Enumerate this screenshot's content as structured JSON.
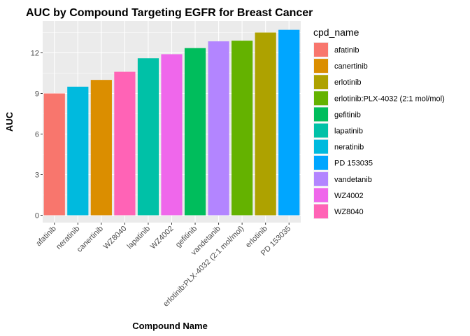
{
  "chart_data": {
    "type": "bar",
    "title": "AUC by Compound Targeting EGFR for Breast Cancer",
    "xlabel": "Compound Name",
    "ylabel": "AUC",
    "ylim": [
      0,
      14
    ],
    "yticks": [
      0,
      3,
      6,
      9,
      12
    ],
    "grid": true,
    "legend_position": "right",
    "legend_title": "cpd_name",
    "categories": [
      "afatinib",
      "neratinib",
      "canertinib",
      "WZ8040",
      "lapatinib",
      "WZ4002",
      "gefitinib",
      "vandetanib",
      "erlotinib:PLX-4032 (2:1 mol/mol)",
      "erlotinib",
      "PD 153035"
    ],
    "values": [
      9.0,
      9.5,
      10.0,
      10.6,
      11.6,
      11.9,
      12.35,
      12.85,
      12.9,
      13.5,
      13.7
    ],
    "legend": [
      {
        "name": "afatinib",
        "color": "#F8766D"
      },
      {
        "name": "canertinib",
        "color": "#DB8E00"
      },
      {
        "name": "erlotinib",
        "color": "#AEA200"
      },
      {
        "name": "erlotinib:PLX-4032 (2:1 mol/mol)",
        "color": "#64B200"
      },
      {
        "name": "gefitinib",
        "color": "#00BD5C"
      },
      {
        "name": "lapatinib",
        "color": "#00C1A7"
      },
      {
        "name": "neratinib",
        "color": "#00BADE"
      },
      {
        "name": "PD 153035",
        "color": "#00A6FF"
      },
      {
        "name": "vandetanib",
        "color": "#B385FF"
      },
      {
        "name": "WZ4002",
        "color": "#EF67EB"
      },
      {
        "name": "WZ8040",
        "color": "#FF63B6"
      }
    ]
  }
}
